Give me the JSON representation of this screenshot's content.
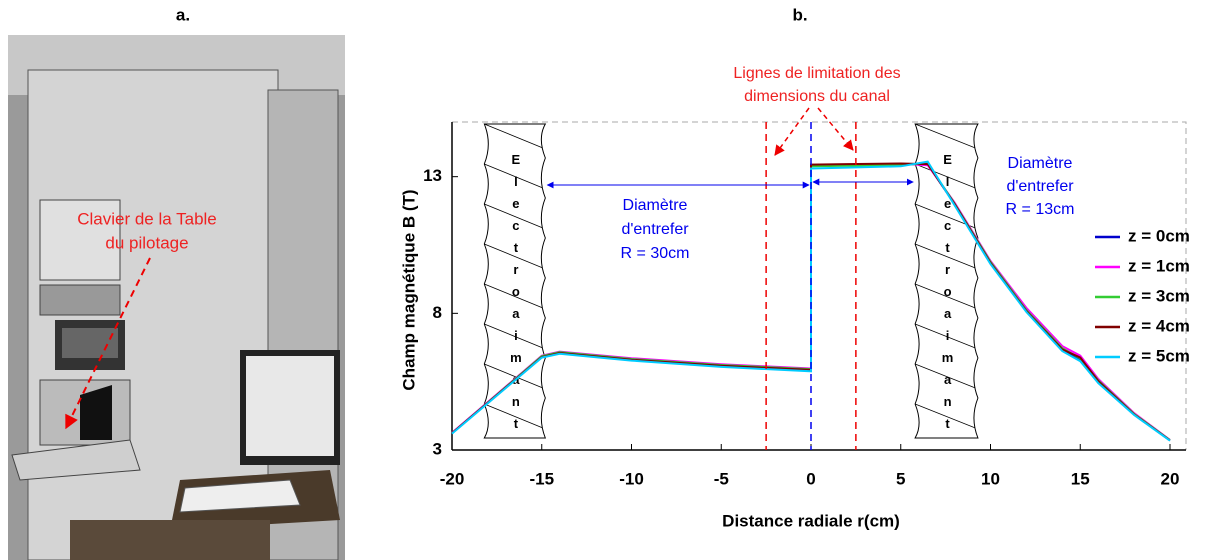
{
  "photo": {
    "label": "a.",
    "annotation": [
      "Clavier de la Table",
      "du pilotage"
    ]
  },
  "chart_data": {
    "type": "line",
    "panel_label": "b.",
    "x_label": "Distance radiale r(cm)",
    "y_label": "Champ magnétique B (T)",
    "xlim": [
      -20,
      20
    ],
    "xticks": [
      -20,
      -15,
      -10,
      -5,
      0,
      5,
      10,
      15,
      20
    ],
    "ylim": [
      3,
      15
    ],
    "yticks": [
      3,
      8,
      13
    ],
    "x": [
      -20,
      -15,
      -14,
      -10,
      -5,
      0,
      0,
      2,
      5,
      6.5,
      8,
      10,
      12,
      14,
      15,
      16,
      18,
      20
    ],
    "series": [
      {
        "name": "z = 0cm",
        "color": "#0000cc",
        "values": [
          3.62,
          6.42,
          6.57,
          6.32,
          6.1,
          5.95,
          13.4,
          13.42,
          13.45,
          13.45,
          12.0,
          9.85,
          8.1,
          6.7,
          6.3,
          5.5,
          4.3,
          3.35
        ]
      },
      {
        "name": "z = 1cm",
        "color": "#ff00ff",
        "values": [
          3.63,
          6.45,
          6.6,
          6.36,
          6.14,
          5.98,
          13.42,
          13.44,
          13.47,
          13.42,
          12.05,
          9.92,
          8.2,
          6.8,
          6.45,
          5.6,
          4.35,
          3.37
        ]
      },
      {
        "name": "z = 3cm",
        "color": "#33cc33",
        "values": [
          3.61,
          6.43,
          6.58,
          6.33,
          6.11,
          5.96,
          13.38,
          13.4,
          13.43,
          13.48,
          12.02,
          9.88,
          8.12,
          6.72,
          6.35,
          5.55,
          4.32,
          3.36
        ]
      },
      {
        "name": "z = 4cm",
        "color": "#800000",
        "values": [
          3.62,
          6.4,
          6.55,
          6.3,
          6.08,
          5.93,
          13.44,
          13.46,
          13.48,
          13.46,
          12.0,
          9.84,
          8.08,
          6.68,
          6.38,
          5.52,
          4.3,
          3.35
        ]
      },
      {
        "name": "z = 5cm",
        "color": "#00ccff",
        "values": [
          3.6,
          6.38,
          6.52,
          6.27,
          6.04,
          5.88,
          13.3,
          13.33,
          13.38,
          13.55,
          11.95,
          9.8,
          8.05,
          6.62,
          6.25,
          5.45,
          4.28,
          3.34
        ]
      }
    ],
    "reference_lines": [
      {
        "x": -2.5,
        "color": "#ee0000"
      },
      {
        "x": 0,
        "color": "#0000ee"
      },
      {
        "x": 2.5,
        "color": "#ee0000"
      }
    ],
    "magnets": [
      {
        "label": "Electroaimant",
        "x": [
          -18.2,
          -14.8
        ]
      },
      {
        "label": "Electroaimant",
        "x": [
          5.8,
          9.3
        ]
      }
    ],
    "annotations": {
      "limits": [
        "Lignes de limitation des",
        "dimensions du canal"
      ],
      "left_gap": [
        "Diamètre",
        "d'entrefer",
        "R = 30cm"
      ],
      "right_gap": [
        "Diamètre",
        "d'entrefer",
        "R = 13cm"
      ]
    }
  }
}
